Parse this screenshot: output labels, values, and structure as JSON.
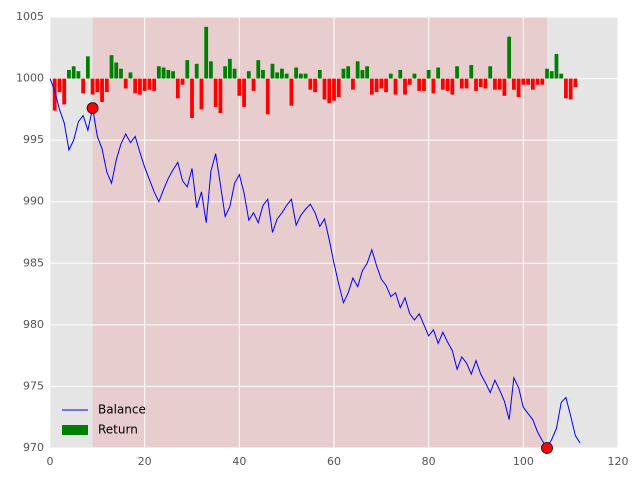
{
  "chart_data": {
    "type": "line_bar",
    "xlim": [
      0,
      120
    ],
    "xticks": [
      0,
      20,
      40,
      60,
      80,
      100,
      120
    ],
    "ylim": [
      970,
      1005
    ],
    "yticks": [
      970,
      975,
      980,
      985,
      990,
      995,
      1000,
      1005
    ],
    "grid": true,
    "legend": "lower left",
    "span": [
      9,
      105
    ],
    "span_color": "#ff0000",
    "markers": {
      "x": [
        9,
        105
      ],
      "values": [
        997.6,
        970.0
      ],
      "color": "#ff0000"
    },
    "series": [
      {
        "name": "Balance",
        "kind": "line",
        "color": "#0000ff",
        "x": [
          0,
          1,
          2,
          3,
          4,
          5,
          6,
          7,
          8,
          9,
          10,
          11,
          12,
          13,
          14,
          15,
          16,
          17,
          18,
          19,
          20,
          21,
          22,
          23,
          24,
          25,
          26,
          27,
          28,
          29,
          30,
          31,
          32,
          33,
          34,
          35,
          36,
          37,
          38,
          39,
          40,
          41,
          42,
          43,
          44,
          45,
          46,
          47,
          48,
          49,
          50,
          51,
          52,
          53,
          54,
          55,
          56,
          57,
          58,
          59,
          60,
          61,
          62,
          63,
          64,
          65,
          66,
          67,
          68,
          69,
          70,
          71,
          72,
          73,
          74,
          75,
          76,
          77,
          78,
          79,
          80,
          81,
          82,
          83,
          84,
          85,
          86,
          87,
          88,
          89,
          90,
          91,
          92,
          93,
          94,
          95,
          96,
          97,
          98,
          99,
          100,
          101,
          102,
          103,
          104,
          105,
          106,
          107,
          108,
          109,
          110,
          111,
          112
        ],
        "values": [
          1000,
          999,
          997.5,
          996.4,
          994.2,
          995,
          996.5,
          997,
          995.8,
          997.6,
          995.3,
          994.3,
          992.4,
          991.5,
          993.4,
          994.7,
          995.5,
          994.8,
          995.3,
          994,
          992.8,
          991.8,
          990.8,
          990,
          991,
          991.9,
          992.6,
          993.2,
          991.7,
          991.2,
          992.7,
          989.5,
          990.8,
          988.3,
          992.5,
          993.9,
          991.4,
          988.8,
          989.6,
          991.5,
          992.2,
          990.7,
          988.5,
          989.1,
          988.3,
          989.7,
          990.2,
          987.5,
          988.6,
          989.1,
          989.7,
          990.2,
          988.1,
          988.9,
          989.4,
          989.8,
          989.1,
          988,
          988.6,
          986.9,
          985,
          983.3,
          981.8,
          982.6,
          983.8,
          983.1,
          984.4,
          985,
          986.1,
          984.8,
          983.7,
          983.2,
          982.3,
          982.6,
          981.4,
          982.2,
          980.9,
          980.4,
          980.9,
          980,
          979.1,
          979.6,
          978.5,
          979.4,
          978.6,
          977.9,
          976.4,
          977.4,
          976.9,
          976,
          977.1,
          976,
          975.3,
          974.5,
          975.5,
          974.7,
          973.8,
          972.3,
          975.7,
          974.9,
          973.3,
          972.8,
          972.3,
          971.3,
          970.6,
          970.0,
          970.7,
          971.6,
          973.7,
          974.1,
          972.6,
          971,
          970.4
        ]
      },
      {
        "name": "Return",
        "kind": "bar",
        "color": "#008000",
        "down_color": "#ff0000",
        "x": [
          1,
          2,
          3,
          4,
          5,
          6,
          7,
          8,
          9,
          10,
          11,
          12,
          13,
          14,
          15,
          16,
          17,
          18,
          19,
          20,
          21,
          22,
          23,
          24,
          25,
          26,
          27,
          28,
          29,
          30,
          31,
          32,
          33,
          34,
          35,
          36,
          37,
          38,
          39,
          40,
          41,
          42,
          43,
          44,
          45,
          46,
          47,
          48,
          49,
          50,
          51,
          52,
          53,
          54,
          55,
          56,
          57,
          58,
          59,
          60,
          61,
          62,
          63,
          64,
          65,
          66,
          67,
          68,
          69,
          70,
          71,
          72,
          73,
          74,
          75,
          76,
          77,
          78,
          79,
          80,
          81,
          82,
          83,
          84,
          85,
          86,
          87,
          88,
          89,
          90,
          91,
          92,
          93,
          94,
          95,
          96,
          97,
          98,
          99,
          100,
          101,
          102,
          103,
          104,
          105,
          106,
          107,
          108,
          109,
          110,
          111
        ],
        "values": [
          997.4,
          998.9,
          997.9,
          1000.7,
          1001.0,
          1000.6,
          998.8,
          1001.8,
          998.7,
          998.9,
          998.1,
          998.9,
          1001.9,
          1001.3,
          1000.8,
          999.2,
          1000.5,
          998.8,
          998.7,
          999.0,
          999.1,
          999.0,
          1001.0,
          1000.9,
          1000.7,
          1000.6,
          998.4,
          999.5,
          1001.5,
          996.8,
          1001.2,
          997.5,
          1004.2,
          1001.4,
          997.7,
          997.2,
          1001.0,
          1001.6,
          1000.8,
          998.6,
          997.7,
          1000.6,
          999.0,
          1001.5,
          1000.7,
          997.1,
          1001.2,
          1000.5,
          1000.8,
          1000.4,
          997.8,
          1000.9,
          1000.4,
          1000.4,
          999.1,
          998.9,
          1000.7,
          998.3,
          998.0,
          998.2,
          998.5,
          1000.8,
          1001.0,
          999.1,
          1001.4,
          1000.7,
          1001.0,
          998.7,
          998.9,
          999.2,
          998.9,
          1000.4,
          998.7,
          1000.7,
          998.7,
          999.5,
          1000.4,
          999.0,
          999.0,
          1000.7,
          998.8,
          1000.9,
          999.1,
          999.0,
          998.7,
          1001.0,
          999.2,
          999.2,
          1001.1,
          999.0,
          999.3,
          999.2,
          1001.0,
          999.1,
          999.1,
          998.6,
          1003.4,
          999.1,
          998.5,
          999.5,
          999.5,
          999.1,
          999.5,
          999.5,
          1000.8,
          1000.6,
          1002.0,
          1000.4,
          998.4,
          998.3,
          999.3
        ]
      }
    ]
  }
}
